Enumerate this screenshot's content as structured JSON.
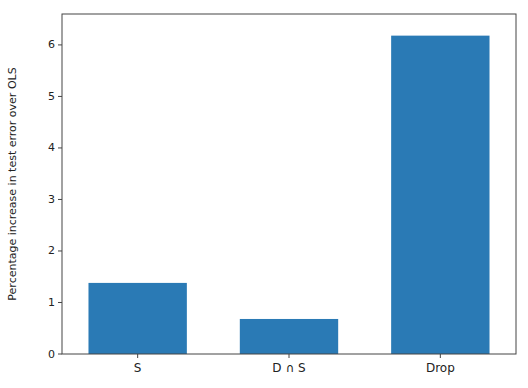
{
  "chart_data": {
    "type": "bar",
    "categories": [
      "S",
      "D ∩ S",
      "Drop"
    ],
    "values": [
      1.38,
      0.68,
      6.18
    ],
    "color": "#2a7ab5",
    "ylabel": "Percentage increase in test error over OLS",
    "ylim": [
      0,
      6.6
    ],
    "yticks": [
      0,
      1,
      2,
      3,
      4,
      5,
      6
    ],
    "grid": false
  }
}
